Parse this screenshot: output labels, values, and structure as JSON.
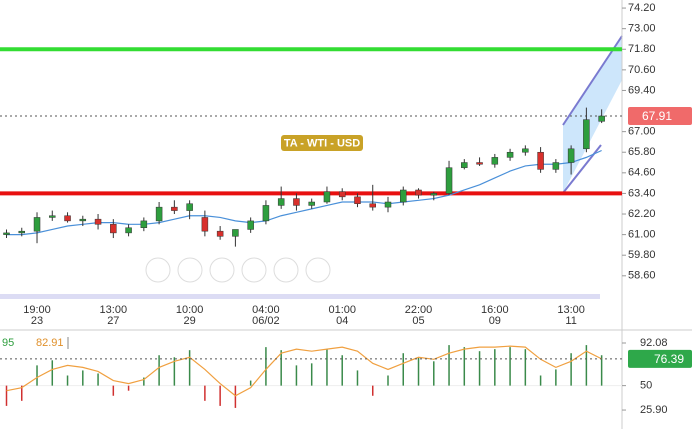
{
  "chart_data": [
    {
      "type": "candlestick",
      "title": "TA - WTI - USD",
      "time_labels": [
        null,
        null,
        "19:00",
        null,
        null,
        null,
        null,
        "13:00",
        null,
        null,
        null,
        null,
        "10:00",
        null,
        null,
        null,
        null,
        "04:00",
        null,
        null,
        null,
        null,
        "01:00",
        null,
        null,
        null,
        null,
        "22:00",
        null,
        null,
        null,
        null,
        "16:00",
        null,
        null,
        null,
        null,
        "13:00",
        null,
        null
      ],
      "date_labels": [
        null,
        null,
        "23",
        null,
        null,
        null,
        null,
        "27",
        null,
        null,
        null,
        null,
        "29",
        null,
        null,
        null,
        null,
        "06/02",
        null,
        null,
        null,
        null,
        "04",
        null,
        null,
        null,
        null,
        "05",
        null,
        null,
        null,
        null,
        "09",
        null,
        null,
        null,
        null,
        "11",
        null,
        null
      ],
      "open": [
        61.0,
        61.1,
        61.2,
        62.0,
        62.1,
        61.8,
        61.9,
        61.6,
        61.1,
        61.4,
        61.8,
        62.6,
        62.4,
        62.0,
        61.2,
        60.9,
        61.3,
        61.8,
        62.7,
        63.1,
        62.7,
        62.9,
        63.5,
        63.2,
        62.8,
        62.6,
        62.9,
        63.6,
        63.3,
        63.4,
        64.9,
        65.2,
        65.1,
        65.5,
        65.8,
        65.8,
        64.8,
        65.2,
        66.0,
        67.6
      ],
      "high": [
        61.3,
        61.4,
        62.3,
        62.4,
        62.3,
        62.1,
        62.2,
        61.9,
        61.6,
        62.0,
        62.9,
        63.0,
        63.0,
        62.4,
        61.5,
        61.2,
        62.0,
        63.0,
        63.8,
        63.4,
        63.1,
        63.8,
        63.7,
        63.4,
        63.9,
        63.2,
        63.8,
        63.7,
        63.5,
        65.3,
        65.4,
        65.5,
        65.7,
        66.0,
        66.2,
        66.1,
        65.4,
        66.2,
        68.4,
        68.3
      ],
      "low": [
        60.8,
        60.9,
        60.5,
        61.8,
        61.7,
        61.5,
        61.3,
        60.8,
        60.9,
        61.2,
        61.6,
        62.2,
        61.9,
        60.9,
        60.7,
        60.3,
        61.1,
        61.6,
        62.5,
        62.4,
        62.5,
        62.8,
        63.0,
        62.6,
        62.4,
        62.3,
        62.7,
        63.1,
        63.0,
        63.3,
        64.8,
        65.0,
        64.9,
        65.3,
        65.6,
        64.6,
        64.6,
        64.5,
        65.8,
        67.5
      ],
      "close": [
        61.1,
        61.2,
        62.0,
        62.1,
        61.8,
        61.9,
        61.6,
        61.1,
        61.4,
        61.8,
        62.6,
        62.4,
        62.8,
        61.2,
        60.9,
        61.3,
        61.8,
        62.7,
        63.1,
        62.7,
        62.9,
        63.5,
        63.2,
        62.8,
        62.6,
        62.9,
        63.6,
        63.3,
        63.4,
        64.9,
        65.2,
        65.1,
        65.5,
        65.8,
        66.0,
        64.8,
        65.2,
        66.0,
        67.7,
        67.91
      ],
      "up_color": "#2e9e3e",
      "down_color": "#d8302c",
      "series": [
        {
          "name": "MA",
          "color": "#4a90d9",
          "values": [
            61.0,
            61.0,
            61.1,
            61.3,
            61.5,
            61.6,
            61.7,
            61.7,
            61.6,
            61.6,
            61.7,
            61.9,
            62.1,
            62.1,
            62.0,
            61.8,
            61.7,
            61.8,
            62.1,
            62.3,
            62.5,
            62.7,
            62.9,
            62.9,
            62.9,
            62.8,
            62.9,
            63.0,
            63.1,
            63.3,
            63.6,
            63.9,
            64.3,
            64.7,
            65.0,
            65.1,
            65.1,
            65.2,
            65.5,
            65.9
          ]
        }
      ],
      "levels": [
        {
          "value": 71.8,
          "color": "#33dd33"
        },
        {
          "value": 63.4,
          "color": "#e81010"
        }
      ],
      "last_price": 67.91,
      "last_price_color": "#f06a6a",
      "ylim": [
        57.19,
        74.67
      ],
      "yticks": [
        {
          "value": 74.2,
          "label": "74.20"
        },
        {
          "value": 73.0,
          "label": "73.00"
        },
        {
          "value": 71.8,
          "label": "71.80"
        },
        {
          "value": 70.6,
          "label": "70.60"
        },
        {
          "value": 69.4,
          "label": "69.40"
        },
        {
          "value": 67.0,
          "label": "67.00"
        },
        {
          "value": 65.8,
          "label": "65.80"
        },
        {
          "value": 64.6,
          "label": "64.60"
        },
        {
          "value": 63.4,
          "label": "63.40"
        },
        {
          "value": 62.2,
          "label": "62.20"
        },
        {
          "value": 61.0,
          "label": "61.00"
        },
        {
          "value": 59.8,
          "label": "59.80"
        },
        {
          "value": 58.6,
          "label": "58.60"
        }
      ]
    },
    {
      "type": "oscillator",
      "legend": [
        "95",
        "82.91"
      ],
      "histogram": [
        30,
        35,
        70,
        75,
        60,
        65,
        62,
        40,
        45,
        58,
        80,
        78,
        85,
        35,
        30,
        28,
        55,
        88,
        85,
        70,
        72,
        86,
        80,
        65,
        40,
        60,
        82,
        78,
        74,
        90,
        88,
        84,
        86,
        88,
        86,
        60,
        66,
        82,
        90,
        80
      ],
      "baseline": 50,
      "up_color": "#3a8a4a",
      "down_color": "#d03030",
      "series": [
        {
          "name": "signal",
          "color": "#f0a040",
          "values": [
            45,
            48,
            58,
            66,
            70,
            68,
            64,
            55,
            52,
            56,
            68,
            74,
            78,
            66,
            52,
            40,
            48,
            66,
            82,
            86,
            84,
            86,
            88,
            84,
            72,
            66,
            72,
            78,
            76,
            82,
            86,
            88,
            88,
            89,
            88,
            76,
            68,
            74,
            84,
            76.39
          ]
        }
      ],
      "last_color": "#2ea84a",
      "ylim": [
        7.2,
        104.9
      ],
      "yticks": [
        92.08,
        50,
        {
          "value": 25.9,
          "label": "25.90"
        }
      ]
    }
  ]
}
